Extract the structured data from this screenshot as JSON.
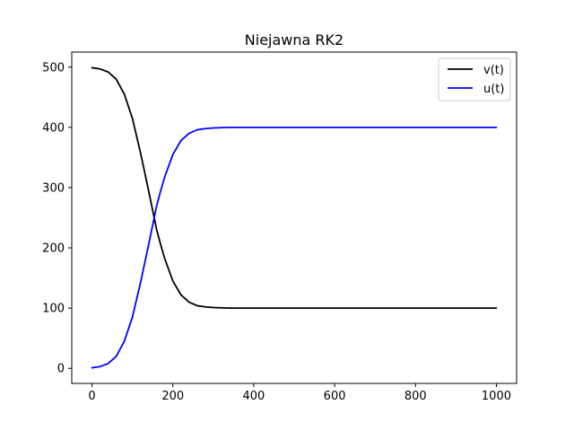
{
  "chart_data": {
    "type": "line",
    "title": "Niejawna RK2",
    "xlabel": "",
    "ylabel": "",
    "xlim": [
      -50,
      1050
    ],
    "ylim": [
      -25,
      525
    ],
    "x_ticks": [
      0,
      200,
      400,
      600,
      800,
      1000
    ],
    "y_ticks": [
      0,
      100,
      200,
      300,
      400,
      500
    ],
    "x_tick_labels": [
      "0",
      "200",
      "400",
      "600",
      "800",
      "1000"
    ],
    "y_tick_labels": [
      "0",
      "100",
      "200",
      "300",
      "400",
      "500"
    ],
    "grid": false,
    "legend_position": "top-right",
    "series": [
      {
        "name": "v(t)",
        "color": "#000000",
        "points": [
          [
            0,
            499
          ],
          [
            20,
            497
          ],
          [
            40,
            492
          ],
          [
            60,
            480
          ],
          [
            80,
            455
          ],
          [
            100,
            415
          ],
          [
            120,
            358
          ],
          [
            140,
            295
          ],
          [
            160,
            230
          ],
          [
            170,
            205
          ],
          [
            180,
            182
          ],
          [
            200,
            145
          ],
          [
            220,
            122
          ],
          [
            240,
            110
          ],
          [
            260,
            104
          ],
          [
            280,
            102
          ],
          [
            300,
            101
          ],
          [
            340,
            100
          ],
          [
            400,
            100
          ],
          [
            500,
            100
          ],
          [
            600,
            100
          ],
          [
            700,
            100
          ],
          [
            800,
            100
          ],
          [
            900,
            100
          ],
          [
            1000,
            100
          ]
        ]
      },
      {
        "name": "u(t)",
        "color": "#0000ff",
        "points": [
          [
            0,
            1
          ],
          [
            20,
            3
          ],
          [
            40,
            8
          ],
          [
            60,
            20
          ],
          [
            80,
            45
          ],
          [
            100,
            85
          ],
          [
            120,
            142
          ],
          [
            140,
            205
          ],
          [
            160,
            270
          ],
          [
            170,
            295
          ],
          [
            180,
            318
          ],
          [
            200,
            355
          ],
          [
            220,
            378
          ],
          [
            240,
            390
          ],
          [
            260,
            396
          ],
          [
            280,
            398
          ],
          [
            300,
            399
          ],
          [
            340,
            400
          ],
          [
            400,
            400
          ],
          [
            500,
            400
          ],
          [
            600,
            400
          ],
          [
            700,
            400
          ],
          [
            800,
            400
          ],
          [
            900,
            400
          ],
          [
            1000,
            400
          ]
        ]
      }
    ]
  }
}
